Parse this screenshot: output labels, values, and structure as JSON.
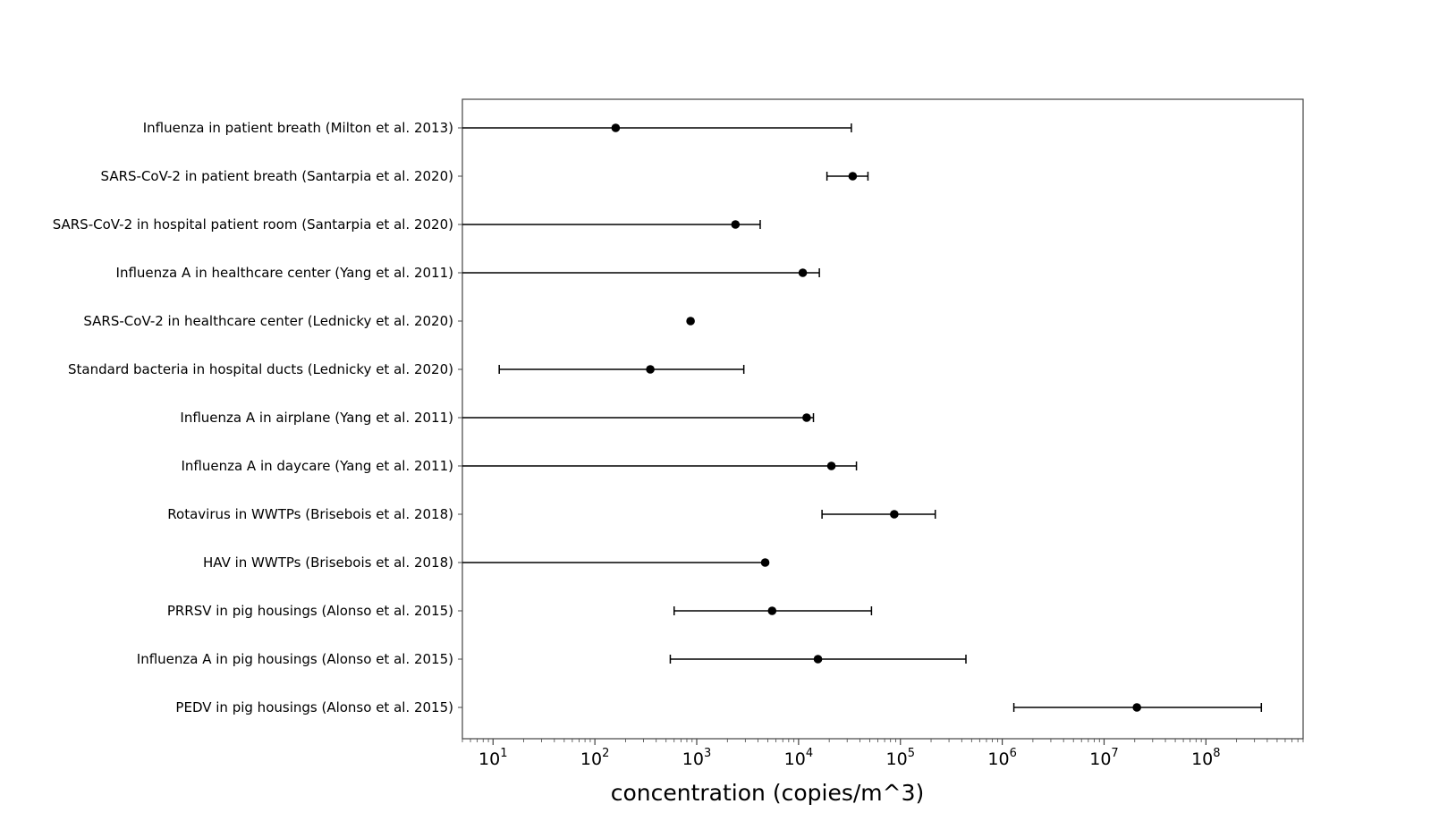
{
  "chart_data": {
    "type": "scatter",
    "orientation": "horizontal",
    "error_bars": true,
    "xscale": "log",
    "xlim": [
      5,
      900000000
    ],
    "xlabel": "concentration (copies/m^3)",
    "ylabel": "",
    "title": "",
    "grid": false,
    "legend": null,
    "x_ticks": [
      {
        "value": 10,
        "base": "10",
        "exp": "1"
      },
      {
        "value": 100,
        "base": "10",
        "exp": "2"
      },
      {
        "value": 1000,
        "base": "10",
        "exp": "3"
      },
      {
        "value": 10000,
        "base": "10",
        "exp": "4"
      },
      {
        "value": 100000,
        "base": "10",
        "exp": "5"
      },
      {
        "value": 1000000,
        "base": "10",
        "exp": "6"
      },
      {
        "value": 10000000,
        "base": "10",
        "exp": "7"
      },
      {
        "value": 100000000,
        "base": "10",
        "exp": "8"
      }
    ],
    "marker_color": "#000000",
    "rows": [
      {
        "label": "Influenza in patient breath (Milton et al. 2013)",
        "value": 160,
        "low": 5,
        "high": 33000,
        "low_cap": false,
        "high_cap": true
      },
      {
        "label": "SARS-CoV-2 in patient breath (Santarpia et al. 2020)",
        "value": 34000,
        "low": 19000,
        "high": 48000,
        "low_cap": true,
        "high_cap": true
      },
      {
        "label": "SARS-CoV-2 in hospital patient room (Santarpia et al. 2020)",
        "value": 2400,
        "low": 5,
        "high": 4200,
        "low_cap": false,
        "high_cap": true
      },
      {
        "label": "Influenza A in healthcare center (Yang et al. 2011)",
        "value": 11000,
        "low": 5,
        "high": 16000,
        "low_cap": false,
        "high_cap": true
      },
      {
        "label": "SARS-CoV-2 in healthcare center (Lednicky et al. 2020)",
        "value": 870,
        "low": null,
        "high": null,
        "low_cap": false,
        "high_cap": false
      },
      {
        "label": "Standard bacteria in hospital ducts (Lednicky et al. 2020)",
        "value": 350,
        "low": 11.5,
        "high": 2900,
        "low_cap": true,
        "high_cap": true
      },
      {
        "label": "Influenza A in airplane (Yang et al. 2011)",
        "value": 12000,
        "low": 5,
        "high": 14000,
        "low_cap": false,
        "high_cap": true
      },
      {
        "label": "Influenza A in daycare (Yang et al. 2011)",
        "value": 21000,
        "low": 5,
        "high": 37000,
        "low_cap": false,
        "high_cap": true
      },
      {
        "label": "Rotavirus in WWTPs (Brisebois et al. 2018)",
        "value": 87000,
        "low": 17000,
        "high": 220000,
        "low_cap": true,
        "high_cap": true
      },
      {
        "label": "HAV in WWTPs (Brisebois et al. 2018)",
        "value": 4700,
        "low": 5,
        "high": 4700,
        "low_cap": false,
        "high_cap": false
      },
      {
        "label": "PRRSV in pig housings (Alonso et al. 2015)",
        "value": 5500,
        "low": 600,
        "high": 52000,
        "low_cap": true,
        "high_cap": true
      },
      {
        "label": "Influenza A in pig housings (Alonso et al. 2015)",
        "value": 15500,
        "low": 550,
        "high": 440000,
        "low_cap": true,
        "high_cap": true
      },
      {
        "label": "PEDV in pig housings (Alonso et al. 2015)",
        "value": 21000000,
        "low": 1300000,
        "high": 350000000,
        "low_cap": true,
        "high_cap": true
      }
    ]
  }
}
